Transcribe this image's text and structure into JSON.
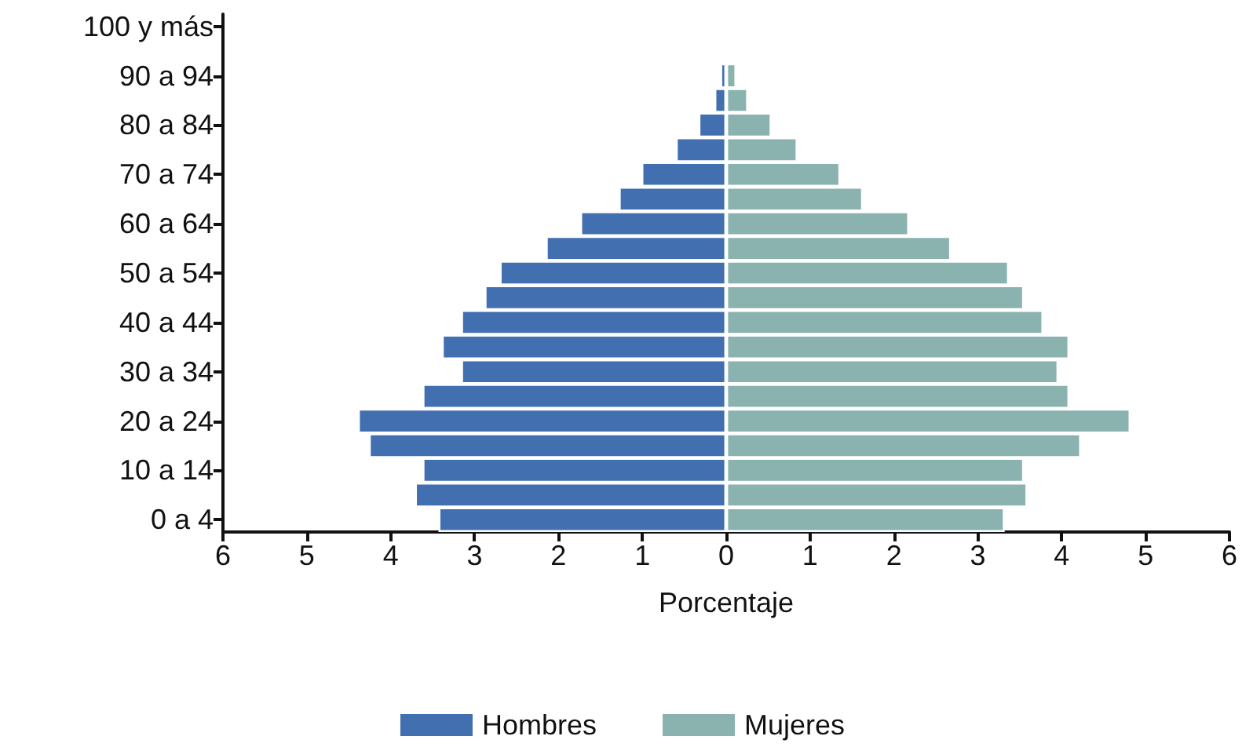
{
  "chart_data": {
    "type": "bar",
    "orientation": "horizontal",
    "xlabel": "Porcentaje",
    "categories": [
      "100 y más",
      null,
      "90 a 94",
      null,
      "80 a 84",
      null,
      "70 a 74",
      null,
      "60 a 64",
      null,
      "50 a 54",
      null,
      "40 a 44",
      null,
      "30 a 34",
      null,
      "20 a 24",
      null,
      "10 a 14",
      null,
      "0 a 4"
    ],
    "series": [
      {
        "name": "Hombres",
        "color": "#426fb0",
        "values": [
          null,
          null,
          -0.07,
          -0.14,
          -0.33,
          -0.6,
          -1.01,
          -1.28,
          -1.74,
          -2.15,
          -2.7,
          -2.88,
          -3.16,
          -3.39,
          -3.16,
          -3.62,
          -4.39,
          -4.26,
          -3.62,
          -3.71,
          -3.43
        ]
      },
      {
        "name": "Mujeres",
        "color": "#8ab3b0",
        "values": [
          null,
          null,
          0.12,
          0.26,
          0.54,
          0.85,
          1.36,
          1.63,
          2.18,
          2.68,
          3.37,
          3.55,
          3.78,
          4.09,
          3.96,
          4.09,
          4.82,
          4.23,
          3.55,
          3.59,
          3.32
        ]
      }
    ],
    "xlim": [
      -6,
      6
    ],
    "xticks": [
      {
        "value": -6,
        "label": "6"
      },
      {
        "value": -5,
        "label": "5"
      },
      {
        "value": -4,
        "label": "4"
      },
      {
        "value": -3,
        "label": "3"
      },
      {
        "value": -2,
        "label": "2"
      },
      {
        "value": -1,
        "label": "1"
      },
      0,
      1,
      2,
      3,
      4,
      5,
      6
    ],
    "stacked": true,
    "grid": false,
    "legend": "bottom"
  }
}
